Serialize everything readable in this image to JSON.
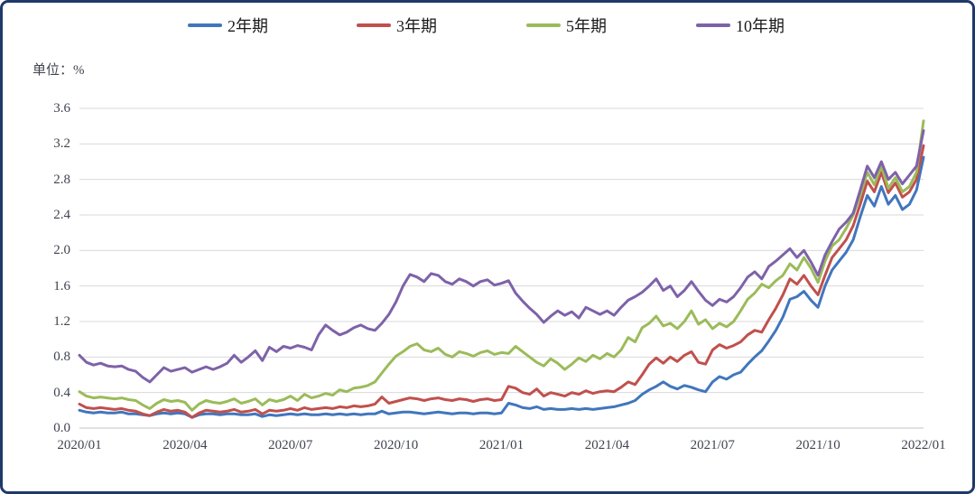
{
  "unit_label": "单位：%",
  "frame": {
    "border_color": "#20386a",
    "background": "#ffffff"
  },
  "chart_data": {
    "type": "line",
    "title": "",
    "ylabel": "单位：%",
    "xlabel": "",
    "ylim": [
      0.0,
      3.6
    ],
    "grid": "horizontal",
    "gridline_color": "#d9d9d9",
    "legend_position": "top",
    "x_start": "2020/01",
    "x_end": "2022/01",
    "x_step_months": 0.2,
    "x_range_months": [
      0,
      24
    ],
    "y_axis": {
      "ticks": [
        0.0,
        0.4,
        0.8,
        1.2,
        1.6,
        2.0,
        2.4,
        2.8,
        3.2,
        3.6
      ]
    },
    "x_axis": {
      "ticks": [
        {
          "label": "2020/01",
          "m": 0
        },
        {
          "label": "2020/04",
          "m": 3
        },
        {
          "label": "2020/07",
          "m": 6
        },
        {
          "label": "2020/10",
          "m": 9
        },
        {
          "label": "2021/01",
          "m": 12
        },
        {
          "label": "2021/04",
          "m": 15
        },
        {
          "label": "2021/07",
          "m": 18
        },
        {
          "label": "2021/10",
          "m": 21
        },
        {
          "label": "2022/01",
          "m": 24
        }
      ]
    },
    "series": [
      {
        "name": "2年期",
        "color": "#4176bd",
        "values": [
          0.2,
          0.18,
          0.17,
          0.18,
          0.17,
          0.17,
          0.18,
          0.16,
          0.16,
          0.15,
          0.14,
          0.16,
          0.17,
          0.16,
          0.17,
          0.16,
          0.12,
          0.15,
          0.16,
          0.16,
          0.15,
          0.16,
          0.16,
          0.15,
          0.15,
          0.16,
          0.13,
          0.15,
          0.14,
          0.15,
          0.16,
          0.15,
          0.16,
          0.15,
          0.15,
          0.16,
          0.15,
          0.16,
          0.15,
          0.16,
          0.15,
          0.16,
          0.16,
          0.19,
          0.16,
          0.17,
          0.18,
          0.18,
          0.17,
          0.16,
          0.17,
          0.18,
          0.17,
          0.16,
          0.17,
          0.17,
          0.16,
          0.17,
          0.17,
          0.16,
          0.17,
          0.28,
          0.26,
          0.23,
          0.22,
          0.24,
          0.21,
          0.22,
          0.21,
          0.21,
          0.22,
          0.21,
          0.22,
          0.21,
          0.22,
          0.23,
          0.24,
          0.26,
          0.28,
          0.31,
          0.38,
          0.43,
          0.47,
          0.52,
          0.47,
          0.44,
          0.48,
          0.46,
          0.43,
          0.41,
          0.52,
          0.58,
          0.55,
          0.6,
          0.63,
          0.72,
          0.8,
          0.87,
          0.98,
          1.1,
          1.25,
          1.45,
          1.48,
          1.54,
          1.44,
          1.36,
          1.6,
          1.78,
          1.88,
          1.98,
          2.12,
          2.38,
          2.62,
          2.5,
          2.72,
          2.52,
          2.62,
          2.46,
          2.52,
          2.68,
          3.05
        ]
      },
      {
        "name": "3年期",
        "color": "#c0504d",
        "values": [
          0.27,
          0.23,
          0.22,
          0.23,
          0.22,
          0.21,
          0.22,
          0.2,
          0.19,
          0.16,
          0.14,
          0.18,
          0.21,
          0.19,
          0.2,
          0.18,
          0.12,
          0.17,
          0.2,
          0.19,
          0.18,
          0.19,
          0.21,
          0.18,
          0.19,
          0.21,
          0.16,
          0.2,
          0.19,
          0.2,
          0.22,
          0.2,
          0.23,
          0.21,
          0.22,
          0.23,
          0.22,
          0.24,
          0.23,
          0.25,
          0.24,
          0.25,
          0.27,
          0.35,
          0.28,
          0.3,
          0.32,
          0.34,
          0.33,
          0.31,
          0.33,
          0.34,
          0.32,
          0.31,
          0.33,
          0.32,
          0.3,
          0.32,
          0.33,
          0.31,
          0.32,
          0.47,
          0.45,
          0.4,
          0.38,
          0.44,
          0.36,
          0.4,
          0.38,
          0.36,
          0.4,
          0.38,
          0.42,
          0.39,
          0.41,
          0.42,
          0.41,
          0.46,
          0.52,
          0.49,
          0.6,
          0.72,
          0.79,
          0.73,
          0.8,
          0.75,
          0.82,
          0.86,
          0.74,
          0.72,
          0.88,
          0.94,
          0.9,
          0.93,
          0.97,
          1.05,
          1.1,
          1.08,
          1.22,
          1.35,
          1.5,
          1.68,
          1.62,
          1.72,
          1.6,
          1.5,
          1.72,
          1.92,
          2.02,
          2.12,
          2.28,
          2.52,
          2.78,
          2.66,
          2.88,
          2.65,
          2.76,
          2.6,
          2.66,
          2.8,
          3.18
        ]
      },
      {
        "name": "5年期",
        "color": "#9bbb59",
        "values": [
          0.41,
          0.36,
          0.34,
          0.35,
          0.34,
          0.33,
          0.34,
          0.32,
          0.31,
          0.26,
          0.22,
          0.28,
          0.32,
          0.3,
          0.31,
          0.29,
          0.2,
          0.27,
          0.31,
          0.29,
          0.28,
          0.3,
          0.33,
          0.28,
          0.3,
          0.33,
          0.26,
          0.32,
          0.3,
          0.32,
          0.36,
          0.31,
          0.38,
          0.34,
          0.36,
          0.39,
          0.37,
          0.43,
          0.41,
          0.45,
          0.46,
          0.48,
          0.52,
          0.62,
          0.72,
          0.81,
          0.86,
          0.92,
          0.95,
          0.88,
          0.86,
          0.9,
          0.83,
          0.8,
          0.86,
          0.84,
          0.81,
          0.85,
          0.87,
          0.83,
          0.85,
          0.84,
          0.92,
          0.86,
          0.8,
          0.74,
          0.7,
          0.78,
          0.73,
          0.66,
          0.72,
          0.79,
          0.75,
          0.82,
          0.78,
          0.84,
          0.8,
          0.88,
          1.02,
          0.97,
          1.13,
          1.18,
          1.26,
          1.15,
          1.18,
          1.12,
          1.2,
          1.32,
          1.17,
          1.22,
          1.12,
          1.18,
          1.14,
          1.2,
          1.32,
          1.45,
          1.52,
          1.62,
          1.58,
          1.66,
          1.72,
          1.85,
          1.78,
          1.92,
          1.8,
          1.64,
          1.88,
          2.05,
          2.12,
          2.25,
          2.4,
          2.62,
          2.88,
          2.74,
          2.95,
          2.7,
          2.82,
          2.66,
          2.72,
          2.88,
          3.46
        ]
      },
      {
        "name": "10年期",
        "color": "#7e62a8",
        "values": [
          0.82,
          0.74,
          0.71,
          0.73,
          0.7,
          0.69,
          0.7,
          0.66,
          0.64,
          0.57,
          0.52,
          0.6,
          0.68,
          0.64,
          0.66,
          0.68,
          0.63,
          0.66,
          0.69,
          0.66,
          0.69,
          0.73,
          0.82,
          0.74,
          0.8,
          0.87,
          0.76,
          0.91,
          0.86,
          0.92,
          0.9,
          0.93,
          0.91,
          0.88,
          1.05,
          1.16,
          1.1,
          1.05,
          1.08,
          1.13,
          1.16,
          1.12,
          1.1,
          1.18,
          1.28,
          1.42,
          1.6,
          1.73,
          1.7,
          1.65,
          1.74,
          1.72,
          1.65,
          1.62,
          1.68,
          1.65,
          1.6,
          1.65,
          1.67,
          1.61,
          1.63,
          1.66,
          1.52,
          1.43,
          1.35,
          1.28,
          1.19,
          1.26,
          1.32,
          1.27,
          1.31,
          1.24,
          1.36,
          1.32,
          1.28,
          1.32,
          1.27,
          1.36,
          1.44,
          1.48,
          1.53,
          1.6,
          1.68,
          1.55,
          1.6,
          1.48,
          1.55,
          1.65,
          1.54,
          1.44,
          1.38,
          1.45,
          1.42,
          1.48,
          1.58,
          1.7,
          1.76,
          1.68,
          1.82,
          1.88,
          1.95,
          2.02,
          1.92,
          2.0,
          1.87,
          1.72,
          1.95,
          2.1,
          2.24,
          2.32,
          2.42,
          2.68,
          2.95,
          2.82,
          3.0,
          2.8,
          2.88,
          2.75,
          2.85,
          2.95,
          3.35
        ]
      }
    ]
  }
}
